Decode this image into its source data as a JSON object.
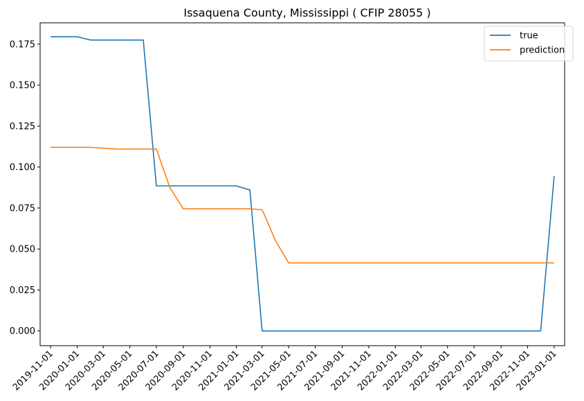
{
  "chart_data": {
    "type": "line",
    "title": "Issaquena County, Mississippi ( CFIP 28055 )",
    "xlabel": "",
    "ylabel": "",
    "x_ticks": [
      "2019-11-01",
      "2020-01-01",
      "2020-03-01",
      "2020-05-01",
      "2020-07-01",
      "2020-09-01",
      "2020-11-01",
      "2021-01-01",
      "2021-03-01",
      "2021-05-01",
      "2021-07-01",
      "2021-09-01",
      "2021-11-01",
      "2022-01-01",
      "2022-03-01",
      "2022-05-01",
      "2022-07-01",
      "2022-09-01",
      "2022-11-01",
      "2023-01-01"
    ],
    "y_ticks": [
      "0.000",
      "0.025",
      "0.050",
      "0.075",
      "0.100",
      "0.125",
      "0.150",
      "0.175"
    ],
    "ylim": [
      -0.009,
      0.188
    ],
    "xlim": [
      "2019-10-08",
      "2023-01-25"
    ],
    "grid": false,
    "legend_position": "top-right",
    "series": [
      {
        "name": "true",
        "color": "#1f77b4",
        "x": [
          "2019-11-01",
          "2019-12-01",
          "2020-01-01",
          "2020-02-01",
          "2020-03-01",
          "2020-04-01",
          "2020-05-01",
          "2020-06-01",
          "2020-07-01",
          "2020-08-01",
          "2020-09-01",
          "2020-10-01",
          "2020-11-01",
          "2020-12-01",
          "2021-01-01",
          "2021-02-01",
          "2021-03-01",
          "2021-04-01",
          "2021-05-01",
          "2021-06-01",
          "2021-07-01",
          "2021-08-01",
          "2021-09-01",
          "2021-10-01",
          "2021-11-01",
          "2021-12-01",
          "2022-01-01",
          "2022-02-01",
          "2022-03-01",
          "2022-04-01",
          "2022-05-01",
          "2022-06-01",
          "2022-07-01",
          "2022-08-01",
          "2022-09-01",
          "2022-10-01",
          "2022-11-01",
          "2022-12-01",
          "2023-01-01"
        ],
        "values": [
          0.1795,
          0.1795,
          0.1795,
          0.1775,
          0.1775,
          0.1775,
          0.1775,
          0.1775,
          0.0885,
          0.0885,
          0.0885,
          0.0885,
          0.0885,
          0.0885,
          0.0885,
          0.086,
          0.0,
          0.0,
          0.0,
          0.0,
          0.0,
          0.0,
          0.0,
          0.0,
          0.0,
          0.0,
          0.0,
          0.0,
          0.0,
          0.0,
          0.0,
          0.0,
          0.0,
          0.0,
          0.0,
          0.0,
          0.0,
          0.0,
          0.0945
        ]
      },
      {
        "name": "prediction",
        "color": "#ff7f0e",
        "x": [
          "2019-11-01",
          "2019-12-01",
          "2020-01-01",
          "2020-02-01",
          "2020-03-01",
          "2020-04-01",
          "2020-05-01",
          "2020-06-01",
          "2020-07-01",
          "2020-08-01",
          "2020-09-01",
          "2020-10-01",
          "2020-11-01",
          "2020-12-01",
          "2021-01-01",
          "2021-02-01",
          "2021-03-01",
          "2021-04-01",
          "2021-05-01",
          "2021-06-01",
          "2021-07-01",
          "2021-08-01",
          "2021-09-01",
          "2021-10-01",
          "2021-11-01",
          "2021-12-01",
          "2022-01-01",
          "2022-02-01",
          "2022-03-01",
          "2022-04-01",
          "2022-05-01",
          "2022-06-01",
          "2022-07-01",
          "2022-08-01",
          "2022-09-01",
          "2022-10-01",
          "2022-11-01",
          "2022-12-01",
          "2023-01-01"
        ],
        "values": [
          0.112,
          0.112,
          0.112,
          0.112,
          0.1115,
          0.111,
          0.111,
          0.111,
          0.111,
          0.0875,
          0.0745,
          0.0745,
          0.0745,
          0.0745,
          0.0745,
          0.0745,
          0.074,
          0.055,
          0.0415,
          0.0415,
          0.0415,
          0.0415,
          0.0415,
          0.0415,
          0.0415,
          0.0415,
          0.0415,
          0.0415,
          0.0415,
          0.0415,
          0.0415,
          0.0415,
          0.0415,
          0.0415,
          0.0415,
          0.0415,
          0.0415,
          0.0415,
          0.0415
        ]
      }
    ]
  }
}
